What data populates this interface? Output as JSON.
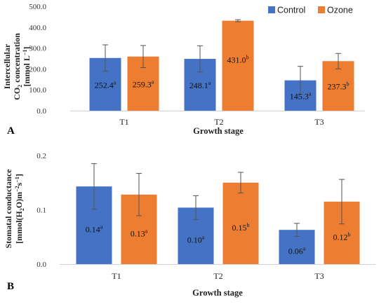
{
  "legend": [
    {
      "name": "Control",
      "color": "#4472c4"
    },
    {
      "name": "Ozone",
      "color": "#ed7d31"
    }
  ],
  "chart_data": [
    {
      "type": "bar",
      "panel_label": "A",
      "categories": [
        "T1",
        "T2",
        "T3"
      ],
      "xlabel": "Growth stage",
      "ylabel_lines": [
        "Intercellular",
        "CO2 concentration",
        "[mmol L−1]"
      ],
      "ylim": [
        0,
        500
      ],
      "yticks": [
        0,
        100,
        200,
        300,
        400,
        500
      ],
      "ytick_labels": [
        "0.0",
        "100.0",
        "200.0",
        "300.0",
        "400.0",
        "500.0"
      ],
      "grid": false,
      "legend_position": "top-right",
      "series": [
        {
          "name": "Control",
          "color": "#4472c4",
          "values": [
            252.4,
            248.1,
            145.3
          ],
          "labels": [
            "252.4",
            "248.1",
            "145.3"
          ],
          "letters": [
            "a",
            "a",
            "a"
          ],
          "errors": [
            63,
            63,
            67
          ]
        },
        {
          "name": "Ozone",
          "color": "#ed7d31",
          "values": [
            259.3,
            431.0,
            237.3
          ],
          "labels": [
            "259.3",
            "431.0",
            "237.3"
          ],
          "letters": [
            "a",
            "b",
            "b"
          ],
          "errors": [
            53,
            5,
            37
          ]
        }
      ]
    },
    {
      "type": "bar",
      "panel_label": "B",
      "categories": [
        "T1",
        "T2",
        "T3"
      ],
      "xlabel": "Growth stage",
      "ylabel_lines": [
        "Stomatal conductance",
        "[mmol(H2O)m−2s−1]"
      ],
      "ylim": [
        0,
        0.2
      ],
      "yticks": [
        0,
        0.1,
        0.2
      ],
      "ytick_labels": [
        "0.0",
        "0.1",
        "0.2"
      ],
      "grid": false,
      "series": [
        {
          "name": "Control",
          "color": "#4472c4",
          "values": [
            0.143,
            0.104,
            0.063
          ],
          "labels": [
            "0.14",
            "0.10",
            "0.06"
          ],
          "letters": [
            "a",
            "a",
            "a"
          ],
          "errors": [
            0.042,
            0.022,
            0.012
          ]
        },
        {
          "name": "Ozone",
          "color": "#ed7d31",
          "values": [
            0.128,
            0.15,
            0.115
          ],
          "labels": [
            "0.13",
            "0.15",
            "0.12"
          ],
          "letters": [
            "a",
            "b",
            "b"
          ],
          "errors": [
            0.039,
            0.019,
            0.041
          ]
        }
      ]
    }
  ]
}
